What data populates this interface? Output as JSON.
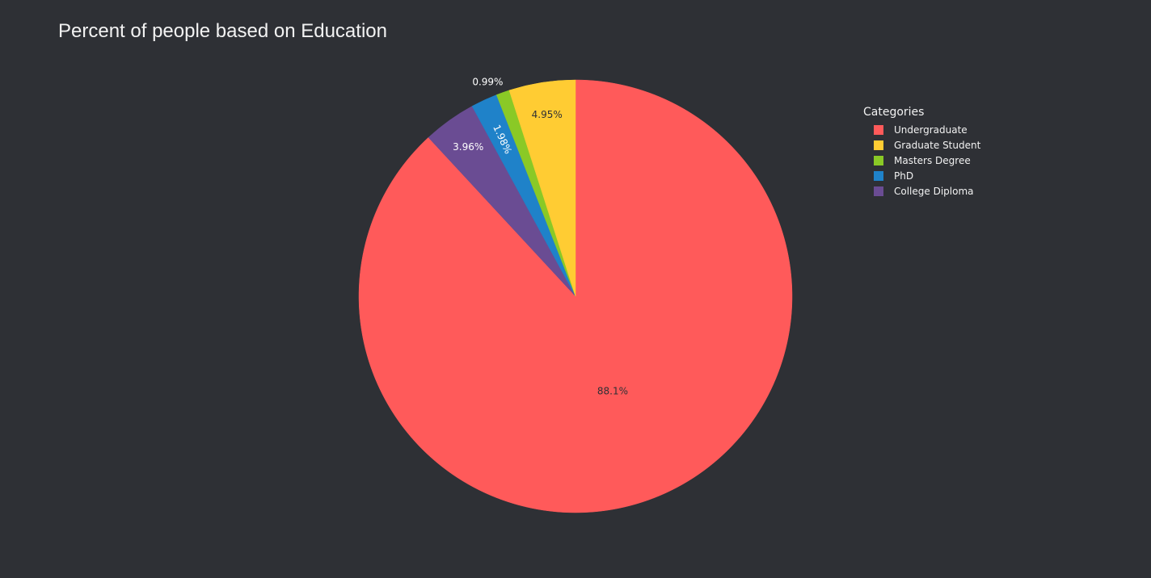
{
  "chart_data": {
    "type": "pie",
    "title": "Percent of people based on Education",
    "legend_title": "Categories",
    "legend_position": "top-right",
    "direction": "clockwise",
    "start": "top",
    "slices": [
      {
        "label": "Undergraduate",
        "value": 88.1,
        "text": "88.1%",
        "color": "#ff5a5a",
        "text_color": "#2e3035"
      },
      {
        "label": "Graduate Student",
        "value": 4.95,
        "text": "4.95%",
        "color": "#ffcc33",
        "text_color": "#2e3035"
      },
      {
        "label": "Masters Degree",
        "value": 0.99,
        "text": "0.99%",
        "color": "#8ac926",
        "text_color": "#ffffff"
      },
      {
        "label": "PhD",
        "value": 1.98,
        "text": "1.98%",
        "color": "#1f82c9",
        "text_color": "#ffffff"
      },
      {
        "label": "College Diploma",
        "value": 3.96,
        "text": "3.96%",
        "color": "#6a4c93",
        "text_color": "#ffffff"
      }
    ],
    "legend_order": [
      "Undergraduate",
      "Graduate Student",
      "Masters Degree",
      "PhD",
      "College Diploma"
    ]
  },
  "colors": {
    "background": "#2e3035",
    "text": "#f2f2f2"
  }
}
